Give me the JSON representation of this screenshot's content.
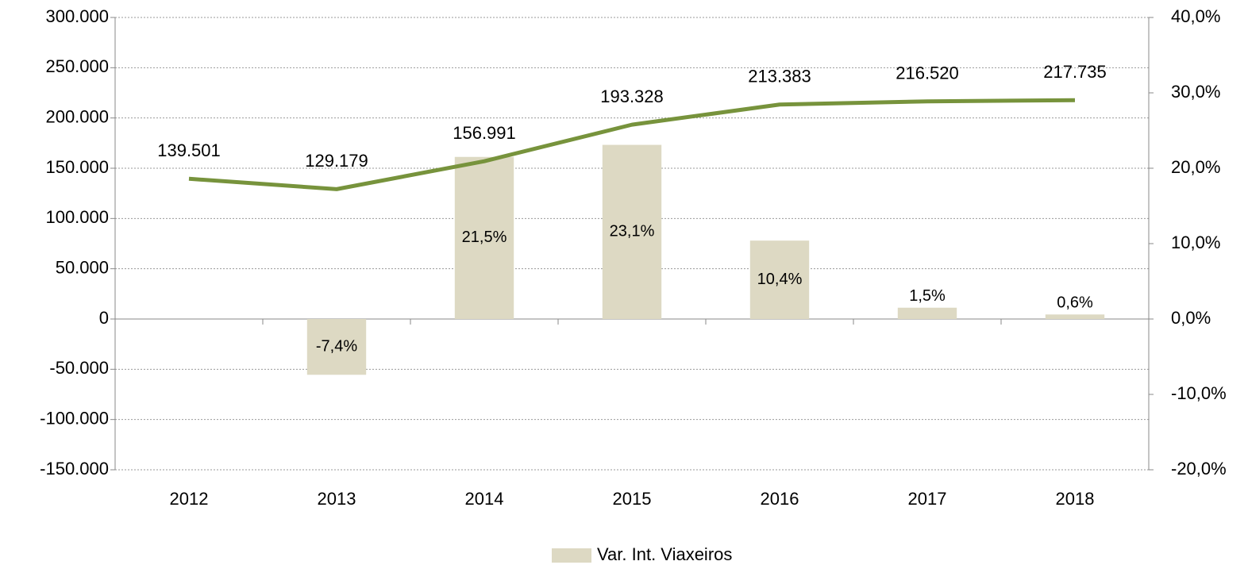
{
  "chart_data": {
    "type": "bar",
    "categories": [
      "2012",
      "2013",
      "2014",
      "2015",
      "2016",
      "2017",
      "2018"
    ],
    "series": [
      {
        "name": "Var. Int. Viaxeiros",
        "type": "bar",
        "axis": "y2",
        "color": "#ddd9c3",
        "values": [
          null,
          -7.4,
          21.5,
          23.1,
          10.4,
          1.5,
          0.6
        ],
        "value_labels": [
          null,
          "-7,4%",
          "21,5%",
          "23,1%",
          "10,4%",
          "1,5%",
          "0,6%"
        ]
      },
      {
        "type": "line",
        "axis": "y",
        "color": "#77933c",
        "values": [
          139501,
          129179,
          156991,
          193328,
          213383,
          216520,
          217735
        ],
        "value_labels": [
          "139.501",
          "129.179",
          "156.991",
          "193.328",
          "213.383",
          "216.520",
          "217.735"
        ]
      }
    ],
    "ylim": [
      -150000,
      300000
    ],
    "yticks": [
      {
        "value": -150000,
        "label": "-150.000"
      },
      {
        "value": -100000,
        "label": "-100.000"
      },
      {
        "value": -50000,
        "label": "-50.000"
      },
      0,
      {
        "value": 50000,
        "label": "50.000"
      },
      {
        "value": 100000,
        "label": "100.000"
      },
      {
        "value": 150000,
        "label": "150.000"
      },
      {
        "value": 200000,
        "label": "200.000"
      },
      {
        "value": 250000,
        "label": "250.000"
      },
      {
        "value": 300000,
        "label": "300.000"
      }
    ],
    "y2lim": [
      -20,
      40
    ],
    "y2ticks": [
      {
        "value": -20,
        "label": "-20,0%"
      },
      {
        "value": -10,
        "label": "-10,0%"
      },
      {
        "value": 0,
        "label": "0,0%"
      },
      {
        "value": 10,
        "label": "10,0%"
      },
      {
        "value": 20,
        "label": "20,0%"
      },
      {
        "value": 30,
        "label": "30,0%"
      },
      {
        "value": 40,
        "label": "40,0%"
      }
    ],
    "grid": true,
    "legend": "bottom"
  }
}
